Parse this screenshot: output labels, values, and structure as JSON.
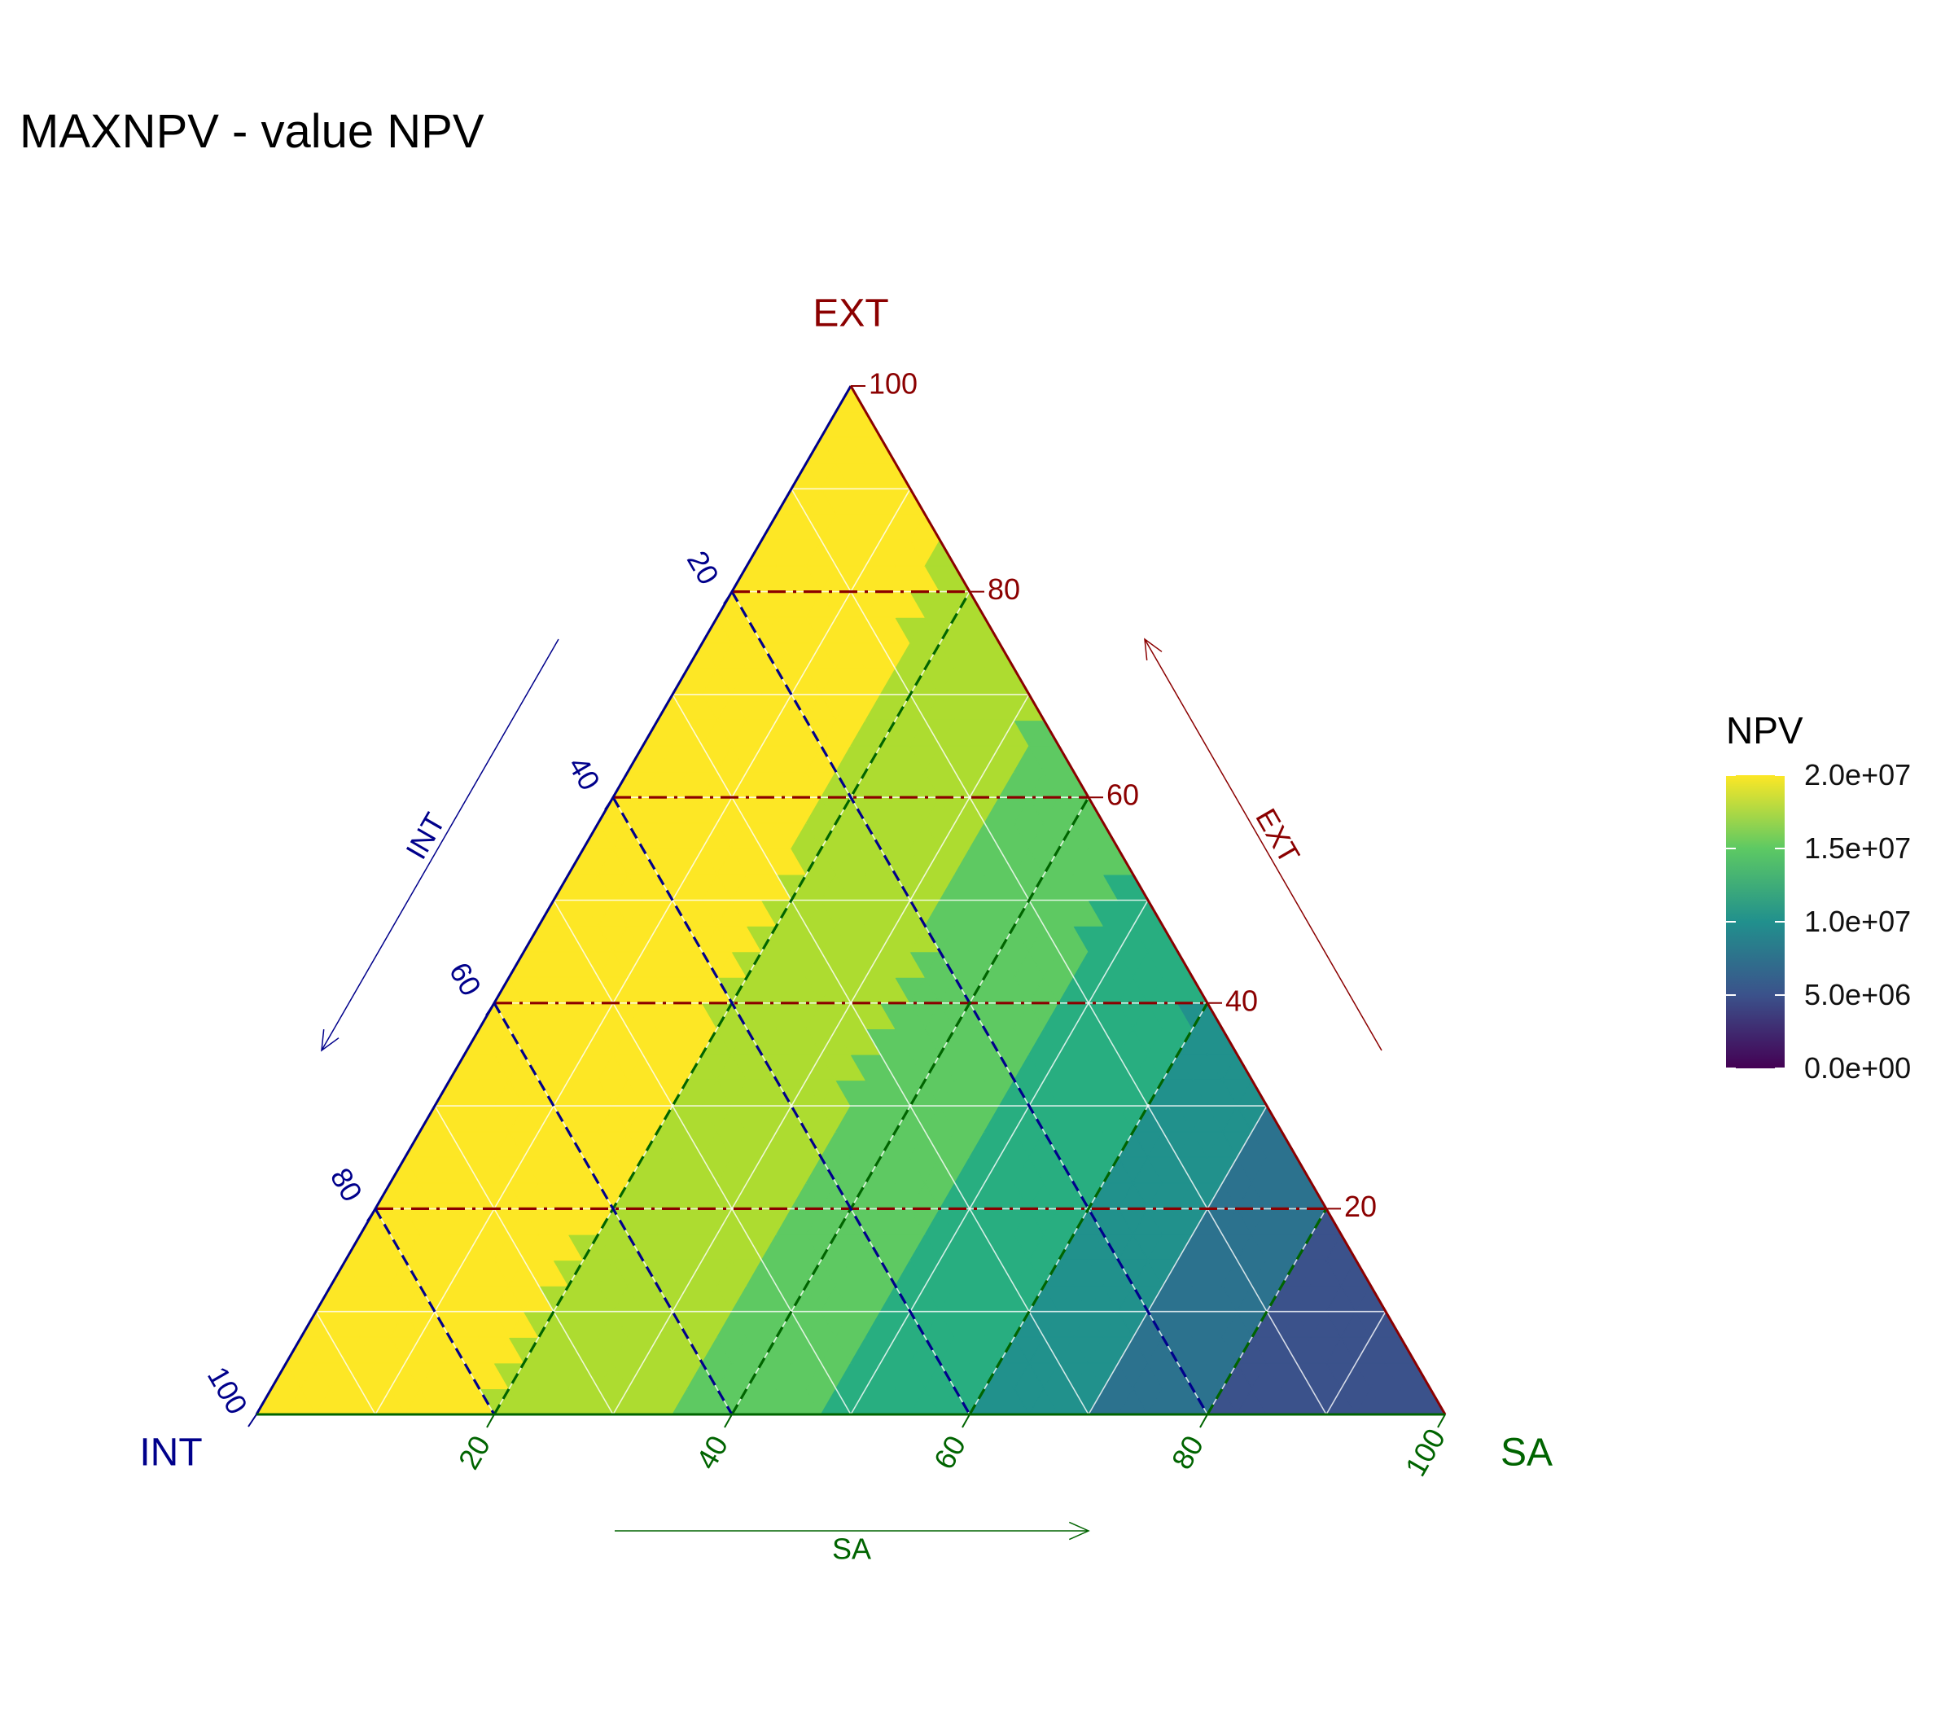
{
  "chart_data": {
    "type": "ternary",
    "title": "MAXNPV - value NPV",
    "axes": {
      "top": {
        "name": "EXT",
        "arrow_label": "EXT",
        "color": "#8b0000",
        "ticks": [
          "20",
          "40",
          "60",
          "80",
          "100"
        ]
      },
      "left": {
        "name": "INT",
        "arrow_label": "INT",
        "color": "#00008b",
        "ticks": [
          "20",
          "40",
          "60",
          "80",
          "100"
        ]
      },
      "right": {
        "name": "SA",
        "arrow_label": "SA",
        "color": "#006400",
        "ticks": [
          "20",
          "40",
          "60",
          "80",
          "100"
        ]
      }
    },
    "grid": {
      "major": [
        20,
        40,
        60,
        80
      ],
      "minor": [
        10,
        30,
        50,
        70,
        90
      ]
    },
    "legend": {
      "title": "NPV",
      "position": "right",
      "labels": [
        "2.0e+07",
        "1.5e+07",
        "1.0e+07",
        "5.0e+06",
        "0.0e+00"
      ],
      "values": [
        20000000,
        15000000,
        10000000,
        5000000,
        0
      ],
      "colors": [
        "#fde725",
        "#5dc963",
        "#21908d",
        "#3b528b",
        "#440154"
      ]
    },
    "bands": [
      {
        "level": "1.75e+07–2.0e+07",
        "color": "#fde725"
      },
      {
        "level": "1.5e+07–1.75e+07",
        "color": "#addc30"
      },
      {
        "level": "1.25e+07–1.5e+07",
        "color": "#5ec962"
      },
      {
        "level": "1.0e+07–1.25e+07",
        "color": "#28ae80"
      },
      {
        "level": "7.5e+06–1.0e+07",
        "color": "#21918c"
      },
      {
        "level": "5.0e+06–7.5e+06",
        "color": "#2c728e"
      },
      {
        "level": "2.5e+06–5.0e+06",
        "color": "#3b528b"
      }
    ]
  }
}
